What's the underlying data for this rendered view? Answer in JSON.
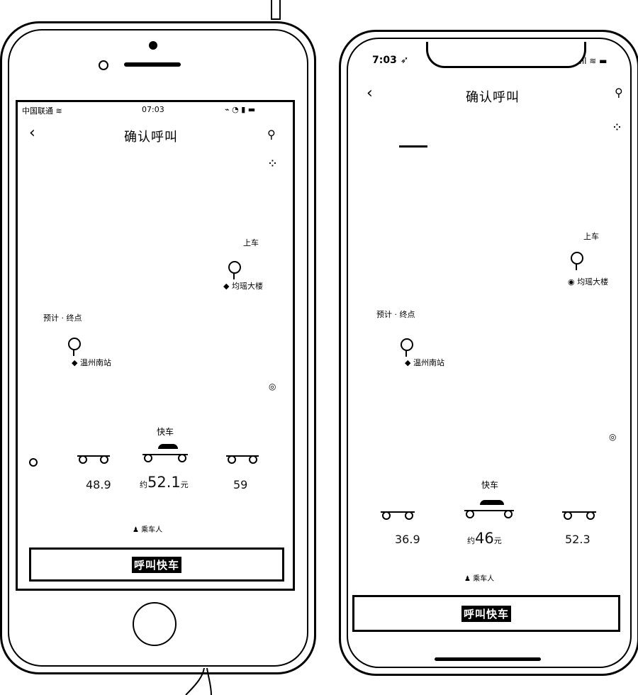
{
  "left_phone": {
    "status": {
      "carrier": "中国联通",
      "time": "07:03"
    },
    "header": {
      "title": "确认呼叫",
      "back_icon": "chevron-left-icon",
      "pin_icon": "map-pin-icon"
    },
    "tabs": [
      "",
      "",
      "",
      "",
      ""
    ],
    "map": {
      "pickup_label": "上车",
      "pickup_place": "均瑶大楼",
      "dropoff_label": "终点",
      "dropoff_place": "温州南站",
      "eta_label": "预计"
    },
    "cars": [
      {
        "name": "",
        "price": "48.9",
        "price_prefix": "",
        "unit": ""
      },
      {
        "name": "快车",
        "price": "52.1",
        "price_prefix": "约",
        "unit": "元"
      },
      {
        "name": "",
        "price": "59",
        "price_prefix": "",
        "unit": ""
      }
    ],
    "passenger": "乘车人",
    "call_button": "呼叫快车"
  },
  "right_phone": {
    "status": {
      "time": "7:03"
    },
    "header": {
      "title": "确认呼叫",
      "back_icon": "chevron-left-icon",
      "pin_icon": "map-pin-icon"
    },
    "tabs": [
      "",
      "",
      "",
      "",
      ""
    ],
    "map": {
      "pickup_label": "上车",
      "pickup_place": "均瑶大楼",
      "dropoff_label": "终点",
      "dropoff_place": "温州南站",
      "eta_label": "预计"
    },
    "cars": [
      {
        "name": "",
        "price": "36.9",
        "price_prefix": "",
        "unit": ""
      },
      {
        "name": "快车",
        "price": "46",
        "price_prefix": "约",
        "unit": "元"
      },
      {
        "name": "",
        "price": "52.3",
        "price_prefix": "",
        "unit": ""
      }
    ],
    "passenger": "乘车人",
    "call_button": "呼叫快车"
  }
}
